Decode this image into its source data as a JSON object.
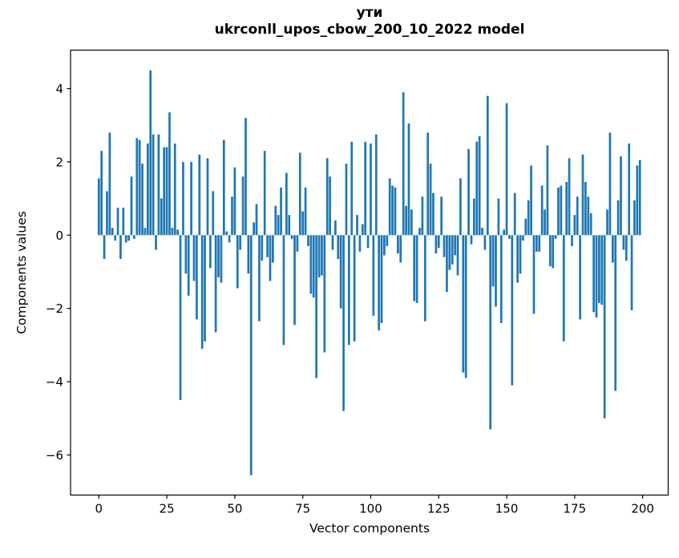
{
  "chart_data": {
    "type": "bar",
    "title": "ути",
    "subtitle": "ukrconll_upos_cbow_200_10_2022 model",
    "xlabel": "Vector components",
    "ylabel": "Components values",
    "bar_color": "#1f77b4",
    "axis_color": "#000000",
    "x_ticks": [
      0,
      25,
      50,
      75,
      100,
      125,
      150,
      175,
      200
    ],
    "y_ticks": [
      4,
      2,
      0,
      -2,
      -4,
      -6
    ],
    "xlim": [
      -10.4,
      209.4
    ],
    "ylim": [
      -7.1,
      5.05
    ],
    "grid": false,
    "legend": "none",
    "x": "component index 0..199",
    "values": [
      1.55,
      2.3,
      -0.65,
      1.2,
      2.8,
      0.2,
      -0.15,
      0.75,
      -0.65,
      0.75,
      -0.2,
      -0.15,
      1.6,
      -0.1,
      2.65,
      2.6,
      1.95,
      0.2,
      2.5,
      4.5,
      2.75,
      -0.4,
      2.75,
      1.0,
      2.4,
      2.4,
      3.35,
      0.2,
      2.5,
      0.15,
      -4.5,
      2.0,
      -1.05,
      -1.65,
      2.0,
      -1.25,
      -2.3,
      2.2,
      -3.1,
      -2.9,
      2.1,
      -0.9,
      1.2,
      -2.65,
      -1.15,
      -1.3,
      2.6,
      0.1,
      -0.2,
      1.05,
      1.85,
      -1.45,
      -0.4,
      1.6,
      3.2,
      -1.05,
      -6.55,
      0.35,
      0.85,
      -2.35,
      -0.7,
      2.3,
      -0.6,
      -1.25,
      -0.75,
      0.8,
      0.55,
      1.3,
      -3.0,
      1.7,
      0.55,
      -0.1,
      -2.45,
      -0.45,
      2.25,
      0.65,
      1.3,
      -0.3,
      -1.6,
      -1.7,
      -3.9,
      -1.15,
      -1.1,
      -3.2,
      2.1,
      1.6,
      -0.4,
      0.4,
      -0.65,
      -2.0,
      -4.8,
      1.95,
      -3.0,
      2.55,
      -2.9,
      0.55,
      -0.45,
      0.3,
      2.55,
      -0.35,
      2.5,
      -2.2,
      2.75,
      -2.6,
      -2.4,
      -0.55,
      -0.3,
      1.55,
      1.35,
      1.3,
      -0.5,
      -0.75,
      3.9,
      0.8,
      3.05,
      0.7,
      -1.8,
      -1.85,
      0.2,
      1.05,
      -2.35,
      2.8,
      1.95,
      1.15,
      -0.5,
      -0.35,
      1.05,
      -0.6,
      -1.55,
      -0.95,
      -0.8,
      -0.55,
      -1.1,
      1.55,
      -3.75,
      -3.9,
      2.35,
      -0.25,
      1.0,
      2.55,
      2.7,
      0.2,
      -0.4,
      3.8,
      -5.3,
      -1.4,
      -1.95,
      1.0,
      -2.4,
      0.15,
      3.6,
      -0.1,
      -4.1,
      1.15,
      -1.3,
      -1.05,
      -0.15,
      0.45,
      0.95,
      1.9,
      -2.15,
      -0.45,
      -0.45,
      1.35,
      0.7,
      2.45,
      -0.85,
      -0.9,
      -0.1,
      1.3,
      1.35,
      -2.9,
      1.45,
      2.1,
      -0.3,
      0.55,
      1.05,
      -2.3,
      2.2,
      1.45,
      1.05,
      0.6,
      -2.1,
      -2.25,
      -1.85,
      -1.9,
      -5.0,
      0.7,
      2.8,
      -0.75,
      -4.25,
      0.95,
      2.15,
      -0.4,
      -0.7,
      2.5,
      -2.05,
      0.95,
      1.9,
      2.05
    ]
  }
}
